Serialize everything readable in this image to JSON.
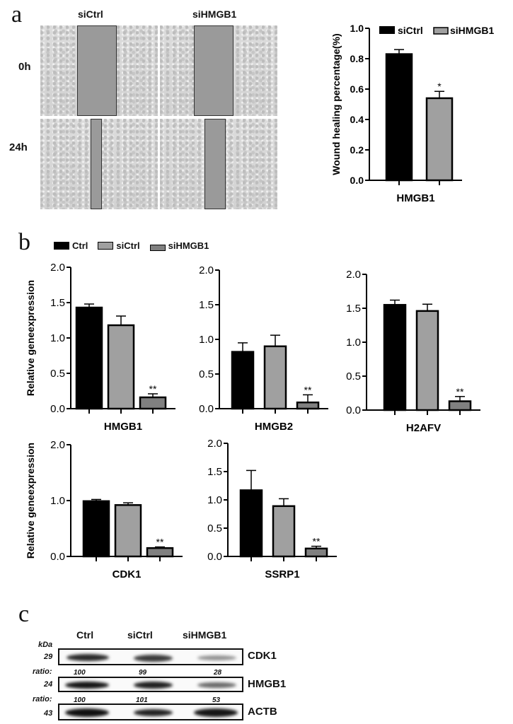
{
  "figure": {
    "panels": {
      "a": {
        "letter": "a",
        "micrographs": {
          "column_labels": [
            "siCtrl",
            "siHMGB1"
          ],
          "row_labels": [
            "0h",
            "24h"
          ]
        }
      },
      "b": {
        "letter": "b"
      },
      "c": {
        "letter": "c"
      }
    },
    "legend_a": {
      "items": [
        {
          "label": "siCtrl",
          "color": "#000000"
        },
        {
          "label": "siHMGB1",
          "color": "#a0a0a0"
        }
      ]
    },
    "legend_b": {
      "items": [
        {
          "label": "Ctrl",
          "color": "#000000"
        },
        {
          "label": "siCtrl",
          "color": "#a0a0a0"
        },
        {
          "label": "siHMGB1",
          "color": "#808080"
        }
      ]
    },
    "western_blot": {
      "unit_label": "kDa",
      "lanes": [
        "Ctrl",
        "siCtrl",
        "siHMGB1"
      ],
      "rows": [
        {
          "protein": "CDK1",
          "kda": "29",
          "ratio_label": "ratio:",
          "ratios": [
            "100",
            "99",
            "28"
          ]
        },
        {
          "protein": "HMGB1",
          "kda": "24",
          "ratio_label": "ratio:",
          "ratios": [
            "100",
            "101",
            "53"
          ]
        },
        {
          "protein": "ACTB",
          "kda": "43"
        }
      ]
    }
  },
  "chart_data": [
    {
      "type": "bar",
      "title": "",
      "categories": [
        "HMGB1"
      ],
      "xlabel": "HMGB1",
      "ylabel": "Wound healing percentage(%)",
      "ylim": [
        0,
        1.0
      ],
      "yticks": [
        "0.0",
        "0.2",
        "0.4",
        "0.6",
        "0.8",
        "1.0"
      ],
      "series": [
        {
          "name": "siCtrl",
          "values": [
            0.83
          ],
          "error": [
            0.03
          ],
          "color": "#000000"
        },
        {
          "name": "siHMGB1",
          "values": [
            0.54
          ],
          "error": [
            0.045
          ],
          "color": "#a0a0a0",
          "annotation": "*"
        }
      ],
      "legend_position": "top"
    },
    {
      "type": "bar",
      "xlabel": "HMGB1",
      "ylabel": "Relative geneexpression",
      "ylim": [
        0,
        2.0
      ],
      "yticks": [
        "0.0",
        "0.5",
        "1.0",
        "1.5",
        "2.0"
      ],
      "categories": [
        "Ctrl",
        "siCtrl",
        "siHMGB1"
      ],
      "values": [
        1.43,
        1.18,
        0.16
      ],
      "error": [
        0.05,
        0.13,
        0.05
      ],
      "annotations": [
        "",
        "",
        "**"
      ]
    },
    {
      "type": "bar",
      "xlabel": "HMGB2",
      "ylabel": "",
      "ylim": [
        0,
        2.0
      ],
      "yticks": [
        "0.0",
        "0.5",
        "1.0",
        "1.5",
        "2.0"
      ],
      "categories": [
        "Ctrl",
        "siCtrl",
        "siHMGB1"
      ],
      "values": [
        0.82,
        0.9,
        0.09
      ],
      "error": [
        0.13,
        0.16,
        0.11
      ],
      "annotations": [
        "",
        "",
        "**"
      ]
    },
    {
      "type": "bar",
      "xlabel": "H2AFV",
      "ylabel": "",
      "ylim": [
        0,
        2.0
      ],
      "yticks": [
        "0.0",
        "0.5",
        "1.0",
        "1.5",
        "2.0"
      ],
      "categories": [
        "Ctrl",
        "siCtrl",
        "siHMGB1"
      ],
      "values": [
        1.55,
        1.46,
        0.13
      ],
      "error": [
        0.07,
        0.1,
        0.07
      ],
      "annotations": [
        "",
        "",
        "**"
      ]
    },
    {
      "type": "bar",
      "xlabel": "CDK1",
      "ylabel": "Relative geneexpression",
      "ylim": [
        0,
        2.0
      ],
      "yticks": [
        "0.0",
        "1.0",
        "2.0"
      ],
      "categories": [
        "Ctrl",
        "siCtrl",
        "siHMGB1"
      ],
      "values": [
        0.99,
        0.92,
        0.15
      ],
      "error": [
        0.03,
        0.04,
        0.02
      ],
      "annotations": [
        "",
        "",
        "**"
      ]
    },
    {
      "type": "bar",
      "xlabel": "SSRP1",
      "ylabel": "",
      "ylim": [
        0,
        2.0
      ],
      "yticks": [
        "0.0",
        "0.5",
        "1.0",
        "1.5",
        "2.0"
      ],
      "categories": [
        "Ctrl",
        "siCtrl",
        "siHMGB1"
      ],
      "values": [
        1.17,
        0.89,
        0.14
      ],
      "error": [
        0.35,
        0.13,
        0.04
      ],
      "annotations": [
        "",
        "",
        "**"
      ]
    }
  ]
}
